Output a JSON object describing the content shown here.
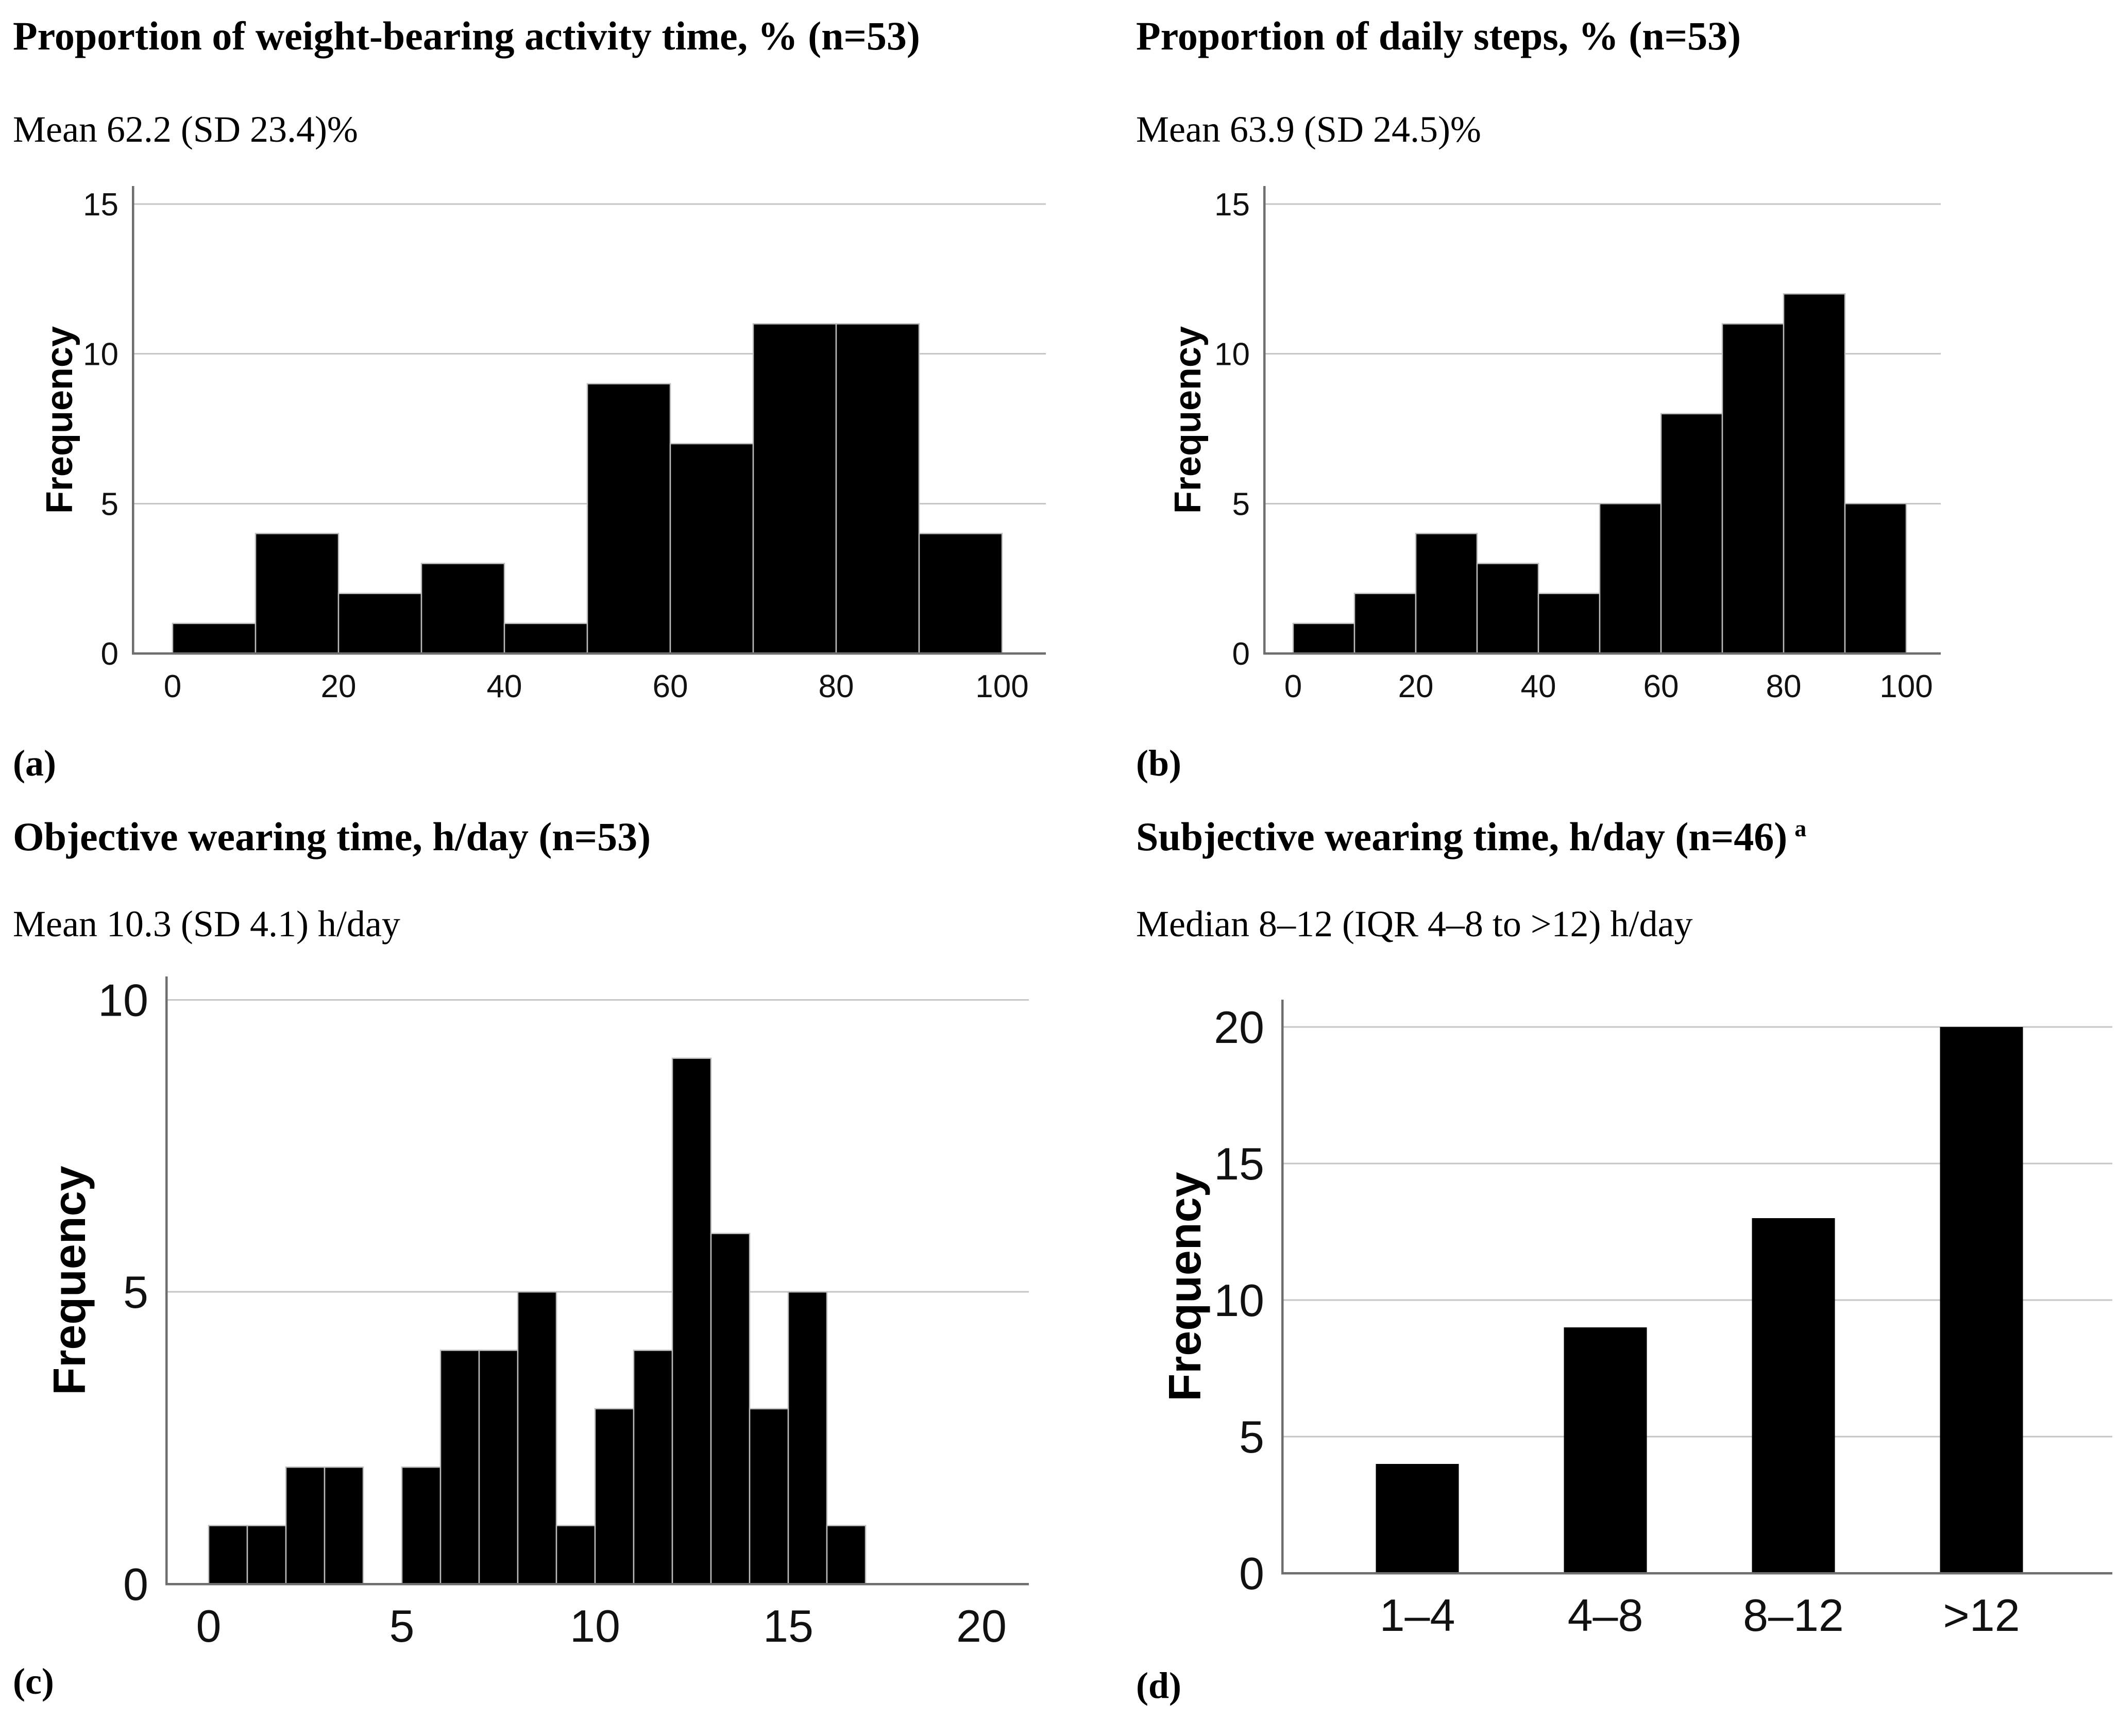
{
  "page": {
    "background": "#ffffff"
  },
  "colors": {
    "bar_fill": "#000000",
    "bar_border": "#bdbdbd",
    "gridline": "#c6c6c6",
    "axis_line": "#6e6e6e",
    "title_text": "#000000",
    "tick_text": "#111111"
  },
  "chart_data": [
    {
      "panel": "a",
      "panel_label": "(a)",
      "title": "Proportion of weight-bearing activity time, % (n=53)",
      "title_superscript": "",
      "subtitle": "Mean 62.2 (SD 23.4)%",
      "type": "bar",
      "subtype": "histogram",
      "ylabel": "Frequency",
      "xlabel": "",
      "bin_start": 0,
      "bin_width": 10,
      "bin_edges": [
        0,
        10,
        20,
        30,
        40,
        50,
        60,
        70,
        80,
        90
      ],
      "values": [
        1,
        4,
        2,
        3,
        1,
        9,
        7,
        11,
        11,
        4
      ],
      "n_total": 53,
      "xticks": [
        0,
        20,
        40,
        60,
        80,
        100
      ],
      "yticks": [
        0,
        5,
        10,
        15
      ],
      "xlim": [
        0,
        100
      ],
      "ylim": [
        0,
        15.6
      ],
      "grid": "horizontal",
      "legend": "none"
    },
    {
      "panel": "b",
      "panel_label": "(b)",
      "title": "Proportion of daily steps, % (n=53)",
      "title_superscript": "",
      "subtitle": "Mean 63.9 (SD 24.5)%",
      "type": "bar",
      "subtype": "histogram",
      "ylabel": "Frequency",
      "xlabel": "",
      "bin_start": 0,
      "bin_width": 10,
      "bin_edges": [
        0,
        10,
        20,
        30,
        40,
        50,
        60,
        70,
        80,
        90
      ],
      "values": [
        1,
        2,
        4,
        3,
        2,
        5,
        8,
        11,
        12,
        5
      ],
      "n_total": 53,
      "xticks": [
        0,
        20,
        40,
        60,
        80,
        100
      ],
      "yticks": [
        0,
        5,
        10,
        15
      ],
      "xlim": [
        0,
        100
      ],
      "ylim": [
        0,
        15.6
      ],
      "grid": "horizontal",
      "legend": "none"
    },
    {
      "panel": "c",
      "panel_label": "(c)",
      "title": "Objective wearing time, h/day (n=53)",
      "title_superscript": "",
      "subtitle": "Mean 10.3 (SD 4.1) h/day",
      "type": "bar",
      "subtype": "histogram",
      "ylabel": "Frequency",
      "xlabel": "",
      "bin_start": 0,
      "bin_width": 1,
      "bin_edges": [
        0,
        1,
        2,
        3,
        4,
        5,
        6,
        7,
        8,
        9,
        10,
        11,
        12,
        13,
        14,
        15,
        16
      ],
      "values": [
        1,
        1,
        2,
        2,
        0,
        2,
        4,
        4,
        5,
        1,
        3,
        4,
        9,
        6,
        3,
        5,
        1
      ],
      "n_total": 53,
      "xticks": [
        0,
        5,
        10,
        15,
        20
      ],
      "yticks": [
        0,
        5,
        10
      ],
      "xlim": [
        0,
        20
      ],
      "ylim": [
        0,
        10.4
      ],
      "grid": "horizontal",
      "legend": "none"
    },
    {
      "panel": "d",
      "panel_label": "(d)",
      "title": "Subjective wearing time, h/day (n=46)",
      "title_superscript": "a",
      "subtitle": "Median 8–12 (IQR 4–8 to >12) h/day",
      "type": "bar",
      "subtype": "categorical",
      "ylabel": "Frequency",
      "xlabel": "",
      "categories": [
        "1–4",
        "4–8",
        "8–12",
        ">12"
      ],
      "values": [
        4,
        9,
        13,
        20
      ],
      "n_total": 46,
      "yticks": [
        0,
        5,
        10,
        15,
        20
      ],
      "ylim": [
        0,
        21
      ],
      "grid": "horizontal",
      "legend": "none"
    }
  ]
}
